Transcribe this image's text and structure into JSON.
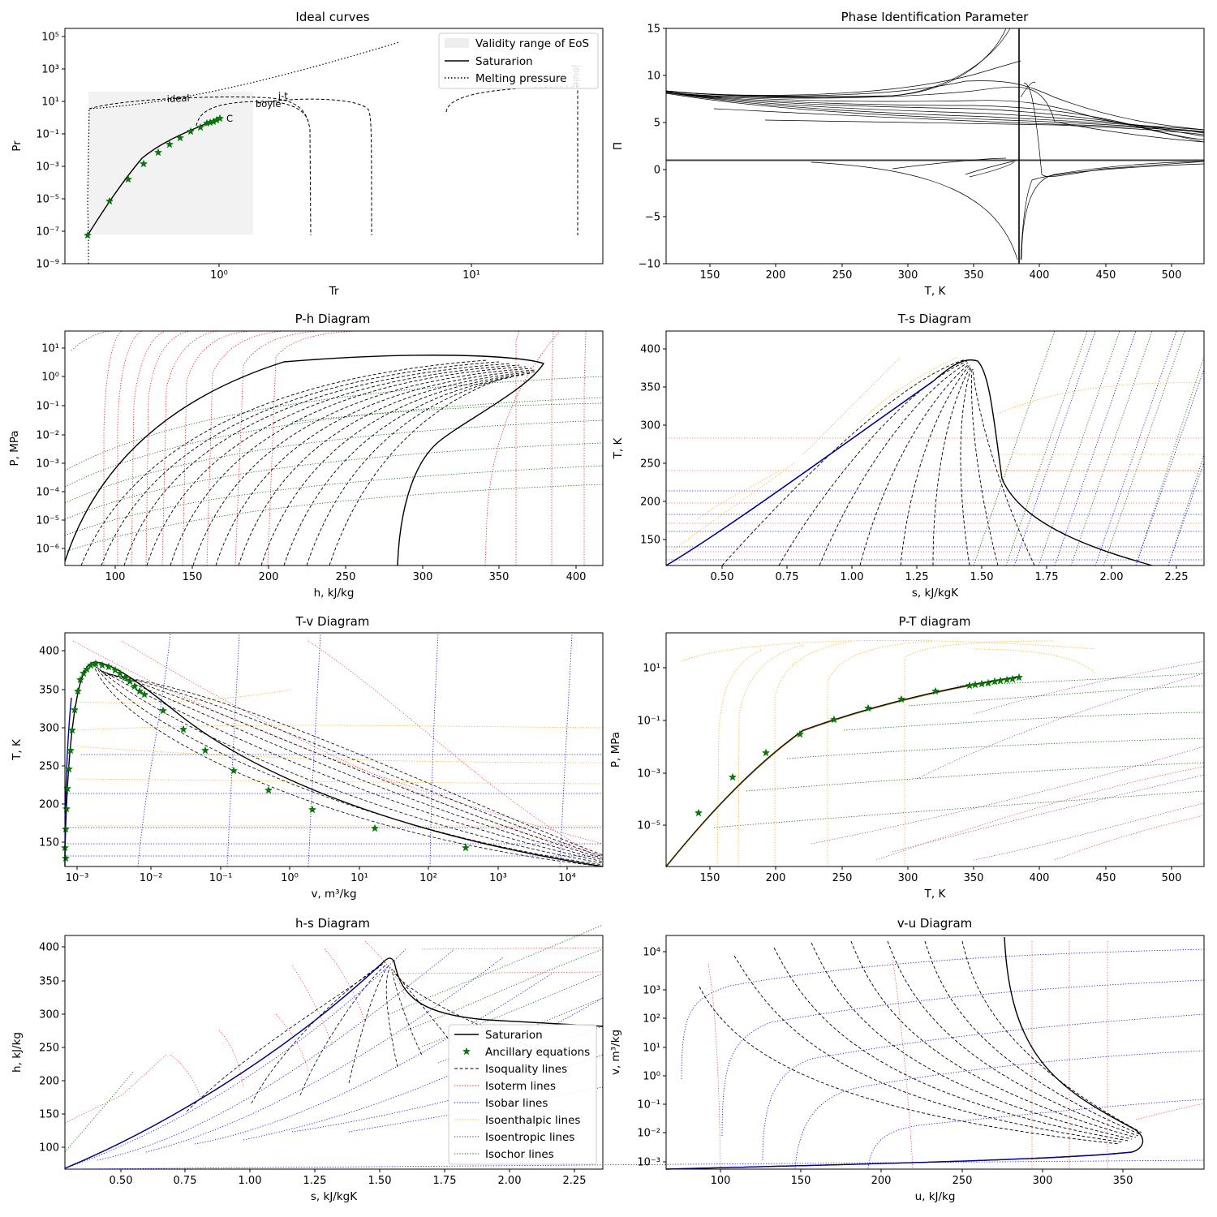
{
  "figure": {
    "panels": {
      "ideal": {
        "title": "Ideal curves",
        "xlabel": "Tr",
        "ylabel": "Pr",
        "xticks": [
          {
            "v": 1,
            "label": "10⁰"
          },
          {
            "v": 10,
            "label": "10¹"
          }
        ],
        "yticks": [
          {
            "v": -9,
            "label": "10⁻⁹"
          },
          {
            "v": -7,
            "label": "10⁻⁷"
          },
          {
            "v": -5,
            "label": "10⁻⁵"
          },
          {
            "v": -3,
            "label": "10⁻³"
          },
          {
            "v": -1,
            "label": "10⁻¹"
          },
          {
            "v": 1,
            "label": "10¹"
          },
          {
            "v": 3,
            "label": "10³"
          },
          {
            "v": 5,
            "label": "10⁵"
          }
        ],
        "legend": [
          "Validity range of EoS",
          "Saturarion",
          "Melting pressure"
        ],
        "curve_labels": {
          "ideal": "ideal",
          "boyle": "boyle",
          "jt": "j-t",
          "joule": "joule",
          "critical": "C"
        }
      },
      "pip": {
        "title": "Phase Identification Parameter",
        "xlabel": "T, K",
        "ylabel": "Π",
        "xticks": [
          "150",
          "200",
          "250",
          "300",
          "350",
          "400",
          "450",
          "500"
        ],
        "yticks": [
          "−10",
          "−5",
          "0",
          "5",
          "10",
          "15"
        ]
      },
      "ph": {
        "title": "P-h Diagram",
        "xlabel": "h, kJ/kg",
        "ylabel": "P, MPa",
        "xticks": [
          "100",
          "150",
          "200",
          "250",
          "300",
          "350",
          "400"
        ],
        "yticks": [
          "10⁻⁶",
          "10⁻⁵",
          "10⁻⁴",
          "10⁻³",
          "10⁻²",
          "10⁻¹",
          "10⁰",
          "10¹"
        ]
      },
      "ts": {
        "title": "T-s Diagram",
        "xlabel": "s, kJ/kgK",
        "ylabel": "T, K",
        "xticks": [
          "0.50",
          "0.75",
          "1.00",
          "1.25",
          "1.50",
          "1.75",
          "2.00",
          "2.25"
        ],
        "yticks": [
          "150",
          "200",
          "250",
          "300",
          "350",
          "400"
        ]
      },
      "tv": {
        "title": "T-v Diagram",
        "xlabel": "v, m³/kg",
        "ylabel": "T, K",
        "xticks": [
          "10⁻³",
          "10⁻²",
          "10⁻¹",
          "10⁰",
          "10¹",
          "10²",
          "10³",
          "10⁴"
        ],
        "yticks": [
          "150",
          "200",
          "250",
          "300",
          "350",
          "400"
        ]
      },
      "pt": {
        "title": "P-T diagram",
        "xlabel": "T, K",
        "ylabel": "P, MPa",
        "xticks": [
          "150",
          "200",
          "250",
          "300",
          "350",
          "400",
          "450",
          "500"
        ],
        "yticks": [
          "10⁻⁵",
          "10⁻³",
          "10⁻¹",
          "10¹"
        ]
      },
      "hs": {
        "title": "h-s Diagram",
        "xlabel": "s, kJ/kgK",
        "ylabel": "h, kJ/kg",
        "xticks": [
          "0.50",
          "0.75",
          "1.00",
          "1.25",
          "1.50",
          "1.75",
          "2.00",
          "2.25"
        ],
        "yticks": [
          "100",
          "150",
          "200",
          "250",
          "300",
          "350",
          "400"
        ],
        "legend": [
          "Saturarion",
          "Ancillary equations",
          "Isoquality lines",
          "Isoterm lines",
          "Isobar lines",
          "Isoenthalpic lines",
          "Isoentropic lines",
          "Isochor lines"
        ]
      },
      "vu": {
        "title": "v-u Diagram",
        "xlabel": "u, kJ/kg",
        "ylabel": "v, m³/kg",
        "xticks": [
          "100",
          "150",
          "200",
          "250",
          "300",
          "350"
        ],
        "yticks": [
          "10⁻³",
          "10⁻²",
          "10⁻¹",
          "10⁰",
          "10¹",
          "10²",
          "10³",
          "10⁴"
        ]
      }
    }
  },
  "colors": {
    "saturation": "#000000",
    "ancillary": "#008000",
    "isoquality": "#000000",
    "isotherm": "#ff0000",
    "isobar": "#0000ff",
    "isenthalpic": "#ffa500",
    "isentropic": "#800080",
    "isochor": "#006400",
    "validity": "#eeeeee"
  },
  "chart_data": [
    {
      "type": "line",
      "title": "Ideal curves",
      "xlabel": "Tr",
      "ylabel": "Pr",
      "x_scale": "log",
      "y_scale": "log",
      "xlim": [
        0.25,
        33
      ],
      "ylim": [
        1e-09,
        300000.0
      ],
      "series": [
        {
          "name": "Saturarion",
          "x": [
            0.3,
            0.4,
            0.5,
            0.6,
            0.7,
            0.8,
            0.9,
            1.0
          ],
          "y": [
            6e-08,
            2e-05,
            0.0015,
            0.012,
            0.06,
            0.2,
            0.5,
            1.0
          ]
        },
        {
          "name": "Ancillary equations",
          "x": [
            0.3,
            0.38,
            0.45,
            0.52,
            0.6,
            0.67,
            0.74,
            0.82,
            0.88,
            0.92,
            0.96,
            1.0
          ],
          "y": [
            6e-08,
            7e-06,
            0.00015,
            0.0015,
            0.006,
            0.022,
            0.06,
            0.15,
            0.3,
            0.45,
            0.6,
            0.85
          ]
        },
        {
          "name": "Melting pressure",
          "x": [
            0.3,
            0.31,
            0.5,
            1.0,
            2.0,
            5.2
          ],
          "y": [
            1e-09,
            5,
            12,
            40,
            200,
            3000
          ]
        },
        {
          "name": "Validity range of EoS",
          "x": [
            0.3,
            1.35
          ],
          "y": [
            6e-08,
            40
          ]
        }
      ]
    },
    {
      "type": "line",
      "title": "Phase Identification Parameter",
      "xlabel": "T, K",
      "ylabel": "Π",
      "xlim": [
        117,
        524
      ],
      "ylim": [
        -10,
        15
      ],
      "series": [
        {
          "x": [
            117,
            200,
            300,
            350,
            380
          ],
          "y": [
            8.4,
            7.9,
            7.8,
            8.5,
            14
          ]
        },
        {
          "x": [
            117,
            300,
            380,
            400,
            524
          ],
          "y": [
            8.2,
            7.5,
            6.5,
            4.8,
            2.6
          ]
        },
        {
          "x": [
            117,
            524
          ],
          "y": [
            1.0,
            1.0
          ]
        }
      ]
    },
    {
      "type": "line",
      "title": "P-h Diagram",
      "xlabel": "h, kJ/kg",
      "ylabel": "P, MPa",
      "y_scale": "log",
      "xlim": [
        68,
        416
      ],
      "ylim": [
        3e-07,
        40
      ],
      "series": [
        {
          "name": "Saturarion",
          "x": [
            68,
            120,
            200,
            300,
            352,
            377,
            350,
            300,
            284
          ],
          "y": [
            3e-07,
            0.0001,
            0.03,
            0.7,
            3.8,
            2.5,
            0.3,
            0.0002,
            3e-07
          ]
        }
      ]
    },
    {
      "type": "line",
      "title": "T-s Diagram",
      "xlabel": "s, kJ/kgK",
      "ylabel": "T, K",
      "xlim": [
        0.28,
        2.36
      ],
      "ylim": [
        117,
        422
      ],
      "series": [
        {
          "name": "Saturarion",
          "x": [
            0.28,
            0.8,
            1.2,
            1.4,
            1.5,
            1.55,
            1.65,
            2.15
          ],
          "y": [
            117,
            220,
            310,
            384,
            360,
            260,
            180,
            117
          ]
        }
      ]
    },
    {
      "type": "line",
      "title": "T-v Diagram",
      "xlabel": "v, m³/kg",
      "ylabel": "T, K",
      "x_scale": "log",
      "xlim": [
        0.00055,
        35000.0
      ],
      "ylim": [
        117,
        422
      ],
      "series": [
        {
          "name": "Saturarion",
          "x": [
            0.0006,
            0.0008,
            0.001,
            0.0017,
            0.004,
            0.1,
            10,
            1000.0,
            30000.0
          ],
          "y": [
            120,
            300,
            360,
            384,
            370,
            250,
            180,
            140,
            117
          ]
        }
      ]
    },
    {
      "type": "line",
      "title": "P-T diagram",
      "xlabel": "T, K",
      "ylabel": "P, MPa",
      "y_scale": "log",
      "xlim": [
        117,
        524
      ],
      "ylim": [
        3e-07,
        200
      ],
      "series": [
        {
          "name": "Saturarion",
          "x": [
            117,
            150,
            200,
            250,
            300,
            350,
            384
          ],
          "y": [
            3e-07,
            0.0001,
            0.007,
            0.12,
            0.7,
            2,
            3.8
          ]
        },
        {
          "name": "Ancillary equations",
          "x": [
            141,
            166,
            192,
            218,
            244,
            269,
            295,
            320,
            346,
            384
          ],
          "y": [
            3e-05,
            0.0006,
            0.006,
            0.03,
            0.1,
            0.28,
            0.55,
            1.1,
            1.9,
            3.8
          ]
        }
      ]
    },
    {
      "type": "line",
      "title": "h-s Diagram",
      "xlabel": "s, kJ/kgK",
      "ylabel": "h, kJ/kg",
      "xlim": [
        0.28,
        2.36
      ],
      "ylim": [
        68,
        416
      ],
      "series": [
        {
          "name": "Saturarion",
          "x": [
            0.28,
            0.8,
            1.2,
            1.45,
            1.52,
            1.6,
            2.0,
            2.36
          ],
          "y": [
            68,
            130,
            210,
            320,
            377,
            310,
            285,
            280
          ]
        }
      ]
    },
    {
      "type": "line",
      "title": "v-u Diagram",
      "xlabel": "u, kJ/kg",
      "ylabel": "v, m³/kg",
      "y_scale": "log",
      "xlim": [
        66,
        398
      ],
      "ylim": [
        0.0006,
        40000.0
      ],
      "series": [
        {
          "name": "Saturarion",
          "x": [
            66,
            200,
            330,
            365,
            350,
            300,
            275
          ],
          "y": [
            0.0006,
            0.0009,
            0.002,
            0.006,
            0.02,
            10,
            30000.0
          ]
        }
      ]
    }
  ]
}
